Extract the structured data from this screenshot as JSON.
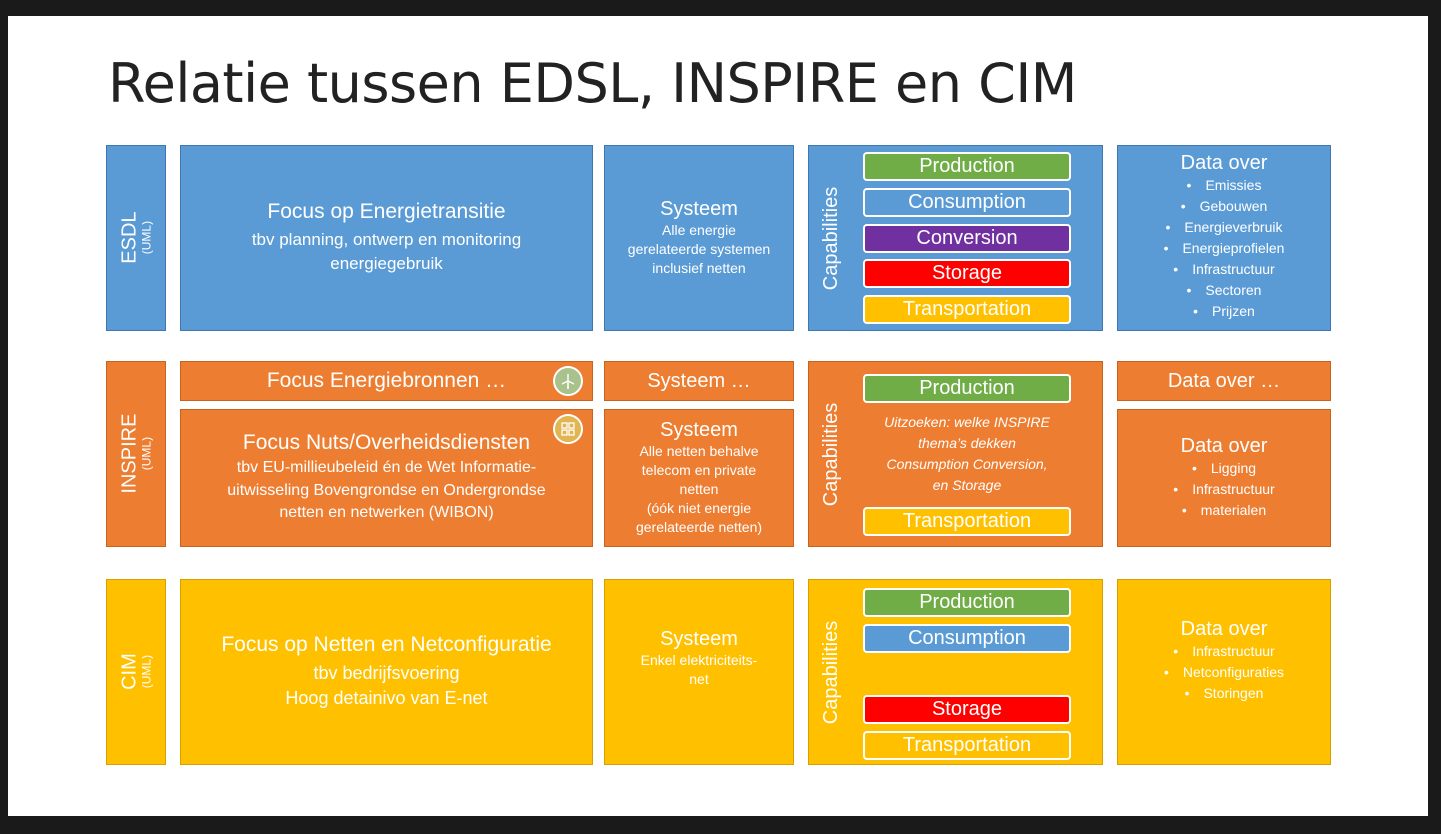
{
  "title": "Relatie tussen EDSL, INSPIRE en CIM",
  "rows": {
    "esdl": {
      "label": "ESDL",
      "sub": "(UML)",
      "focus_title": "Focus op Energietransitie",
      "focus_lines": [
        "tbv planning, ontwerp en monitoring",
        "energiegebruik"
      ],
      "system_title": "Systeem",
      "system_lines": [
        "Alle energie",
        "gerelateerde systemen",
        "inclusief netten"
      ],
      "capabilities_label": "Capabilities",
      "capabilities": [
        "Production",
        "Consumption",
        "Conversion",
        "Storage",
        "Transportation"
      ],
      "data_title": "Data over",
      "data_items": [
        "Emissies",
        "Gebouwen",
        "Energieverbruik",
        "Energieprofielen",
        "Infrastructuur",
        "Sectoren",
        "Prijzen"
      ]
    },
    "inspire": {
      "label": "INSPIRE",
      "sub": "(UML)",
      "focus_top": "Focus Energiebronnen …",
      "system_top": "Systeem …",
      "data_top": "Data over …",
      "focus_title": "Focus Nuts/Overheidsdiensten",
      "focus_lines": [
        "tbv EU-millieubeleid én de Wet Informatie-",
        "uitwisseling Bovengrondse en Ondergrondse",
        "netten en netwerken (WIBON)"
      ],
      "system_title": "Systeem",
      "system_lines": [
        "Alle netten behalve",
        "telecom en private",
        "netten",
        "(óók niet energie",
        "gerelateerde netten)"
      ],
      "capabilities_label": "Capabilities",
      "cap_production": "Production",
      "cap_transportation": "Transportation",
      "note_lines": [
        "Uitzoeken: welke INSPIRE",
        "thema’s dekken",
        "Consumption Conversion,",
        "en Storage"
      ],
      "data_title": "Data over",
      "data_items": [
        "Ligging",
        "Infrastructuur",
        "materialen"
      ]
    },
    "cim": {
      "label": "CIM",
      "sub": "(UML)",
      "focus_title": "Focus op Netten en Netconfiguratie",
      "focus_lines": [
        "tbv bedrijfsvoering",
        "Hoog detainivo van E-net"
      ],
      "system_title": "Systeem",
      "system_lines": [
        "Enkel elektriciteits-",
        "net"
      ],
      "capabilities_label": "Capabilities",
      "cap_production": "Production",
      "cap_consumption": "Consumption",
      "cap_storage": "Storage",
      "cap_transportation": "Transportation",
      "data_title": "Data over",
      "data_items": [
        "Infrastructuur",
        "Netconfiguraties",
        "Storingen"
      ]
    }
  },
  "colors": {
    "blue": "#5b9bd5",
    "orange": "#ed7d31",
    "yellow": "#ffc000",
    "green": "#70ad47",
    "purple": "#7030a0",
    "red": "#ff0000"
  },
  "icons": [
    "wind-turbine-icon",
    "utility-grid-icon"
  ]
}
